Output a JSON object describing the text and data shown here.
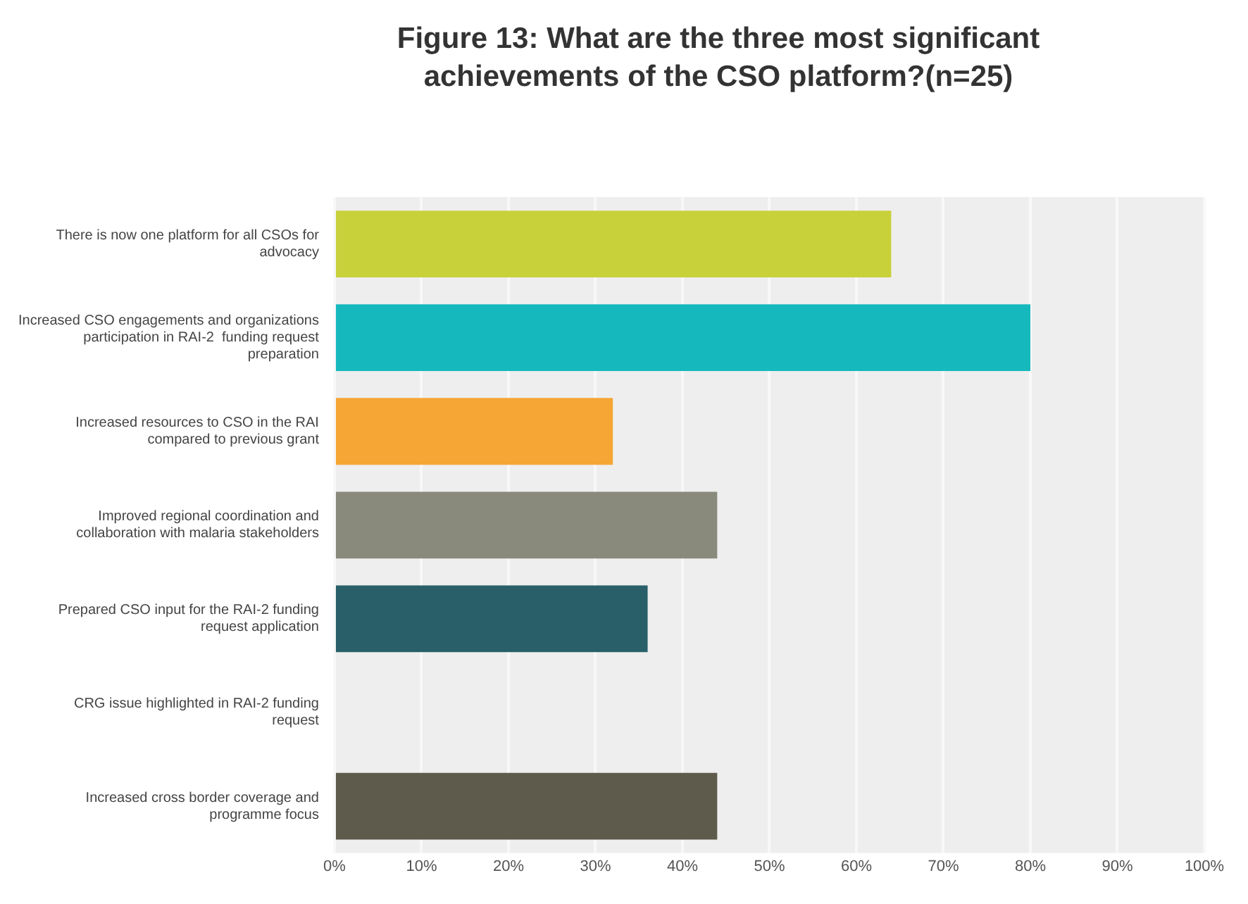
{
  "chart_data": {
    "type": "bar",
    "orientation": "horizontal",
    "title": "Figure 13: What are the three most significant achievements of the CSO platform?(n=25)",
    "categories": [
      "There is now one platform for all CSOs for advocacy",
      "Increased CSO engagements and organizations participation in RAI-2  funding request preparation",
      "Increased resources to CSO in the RAI compared to previous grant",
      "Improved regional coordination and collaboration with malaria stakeholders",
      "Prepared CSO input for the RAI-2 funding request application",
      "CRG issue highlighted in RAI-2 funding request",
      "Increased cross border coverage and programme focus"
    ],
    "values": [
      64,
      80,
      32,
      44,
      36,
      0,
      44
    ],
    "colors": [
      "#c9d13a",
      "#15b9bd",
      "#f5a634",
      "#8a8a7c",
      "#285f69",
      "#9a9a9a",
      "#5e5b4d"
    ],
    "xlim": [
      0,
      100
    ],
    "xticks": [
      {
        "value": 0,
        "label": "0%"
      },
      {
        "value": 10,
        "label": "10%"
      },
      {
        "value": 20,
        "label": "20%"
      },
      {
        "value": 30,
        "label": "30%"
      },
      {
        "value": 40,
        "label": "40%"
      },
      {
        "value": 50,
        "label": "50%"
      },
      {
        "value": 60,
        "label": "60%"
      },
      {
        "value": 70,
        "label": "70%"
      },
      {
        "value": 80,
        "label": "80%"
      },
      {
        "value": 90,
        "label": "90%"
      },
      {
        "value": 100,
        "label": "100%"
      }
    ],
    "grid": "x",
    "legend": false
  }
}
